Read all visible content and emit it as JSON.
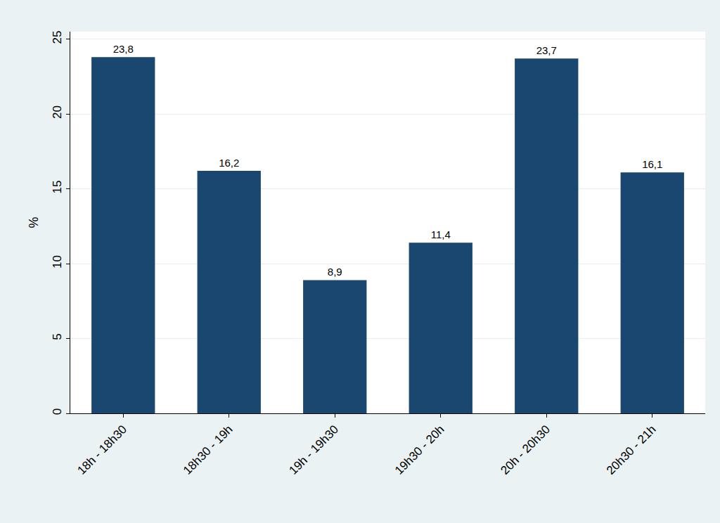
{
  "chart_data": {
    "type": "bar",
    "y_label": "%",
    "categories": [
      "18h - 18h30",
      "18h30 - 19h",
      "19h - 19h30",
      "19h30 - 20h",
      "20h - 20h30",
      "20h30 - 21h"
    ],
    "values": [
      23.8,
      16.2,
      8.9,
      11.4,
      23.7,
      16.1
    ],
    "value_labels": [
      "23,8",
      "16,2",
      "8,9",
      "11,4",
      "23,7",
      "16,1"
    ],
    "color": "#1a476f",
    "ylim": [
      0,
      25.5
    ],
    "yticks": [
      0,
      5,
      10,
      15,
      20,
      25
    ],
    "grid": true,
    "data_labels": true
  }
}
